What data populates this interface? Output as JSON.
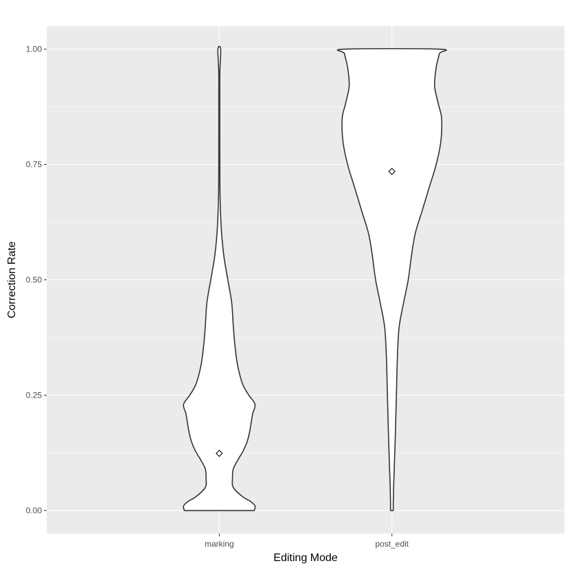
{
  "chart_data": {
    "type": "violin",
    "title": "",
    "xlabel": "Editing Mode",
    "ylabel": "Correction Rate",
    "ylim": [
      -0.05,
      1.05
    ],
    "yticks": [
      0.0,
      0.25,
      0.5,
      0.75,
      1.0
    ],
    "ytick_labels": [
      "0.00",
      "0.25",
      "0.50",
      "0.75",
      "1.00"
    ],
    "categories": [
      "marking",
      "post_edit"
    ],
    "grid": true,
    "colors": {
      "panel": "#ebebeb",
      "grid_major": "#ffffff",
      "violin_fill": "#ffffff",
      "violin_stroke": "#333333",
      "tick_text": "#4d4d4d",
      "axis_title": "#000000"
    },
    "violins": [
      {
        "category": "marking",
        "mean": 0.124,
        "profile": [
          [
            0.0,
            0.45
          ],
          [
            0.01,
            0.46
          ],
          [
            0.02,
            0.4
          ],
          [
            0.03,
            0.3
          ],
          [
            0.05,
            0.18
          ],
          [
            0.07,
            0.17
          ],
          [
            0.09,
            0.18
          ],
          [
            0.11,
            0.24
          ],
          [
            0.13,
            0.31
          ],
          [
            0.15,
            0.36
          ],
          [
            0.17,
            0.39
          ],
          [
            0.19,
            0.41
          ],
          [
            0.21,
            0.43
          ],
          [
            0.23,
            0.46
          ],
          [
            0.25,
            0.38
          ],
          [
            0.27,
            0.31
          ],
          [
            0.29,
            0.27
          ],
          [
            0.32,
            0.23
          ],
          [
            0.36,
            0.2
          ],
          [
            0.4,
            0.18
          ],
          [
            0.45,
            0.16
          ],
          [
            0.5,
            0.11
          ],
          [
            0.55,
            0.06
          ],
          [
            0.6,
            0.03
          ],
          [
            0.65,
            0.015
          ],
          [
            0.7,
            0.008
          ],
          [
            0.8,
            0.006
          ],
          [
            0.9,
            0.006
          ],
          [
            0.95,
            0.007
          ],
          [
            1.0,
            0.018
          ]
        ]
      },
      {
        "category": "post_edit",
        "mean": 0.735,
        "profile": [
          [
            0.0,
            0.018
          ],
          [
            0.02,
            0.018
          ],
          [
            0.05,
            0.022
          ],
          [
            0.1,
            0.032
          ],
          [
            0.15,
            0.042
          ],
          [
            0.2,
            0.05
          ],
          [
            0.25,
            0.058
          ],
          [
            0.3,
            0.065
          ],
          [
            0.35,
            0.075
          ],
          [
            0.4,
            0.095
          ],
          [
            0.45,
            0.15
          ],
          [
            0.5,
            0.21
          ],
          [
            0.55,
            0.25
          ],
          [
            0.6,
            0.3
          ],
          [
            0.65,
            0.39
          ],
          [
            0.7,
            0.48
          ],
          [
            0.75,
            0.57
          ],
          [
            0.8,
            0.63
          ],
          [
            0.85,
            0.64
          ],
          [
            0.88,
            0.6
          ],
          [
            0.92,
            0.55
          ],
          [
            0.96,
            0.57
          ],
          [
            0.99,
            0.61
          ],
          [
            1.0,
            0.61
          ]
        ]
      }
    ]
  }
}
